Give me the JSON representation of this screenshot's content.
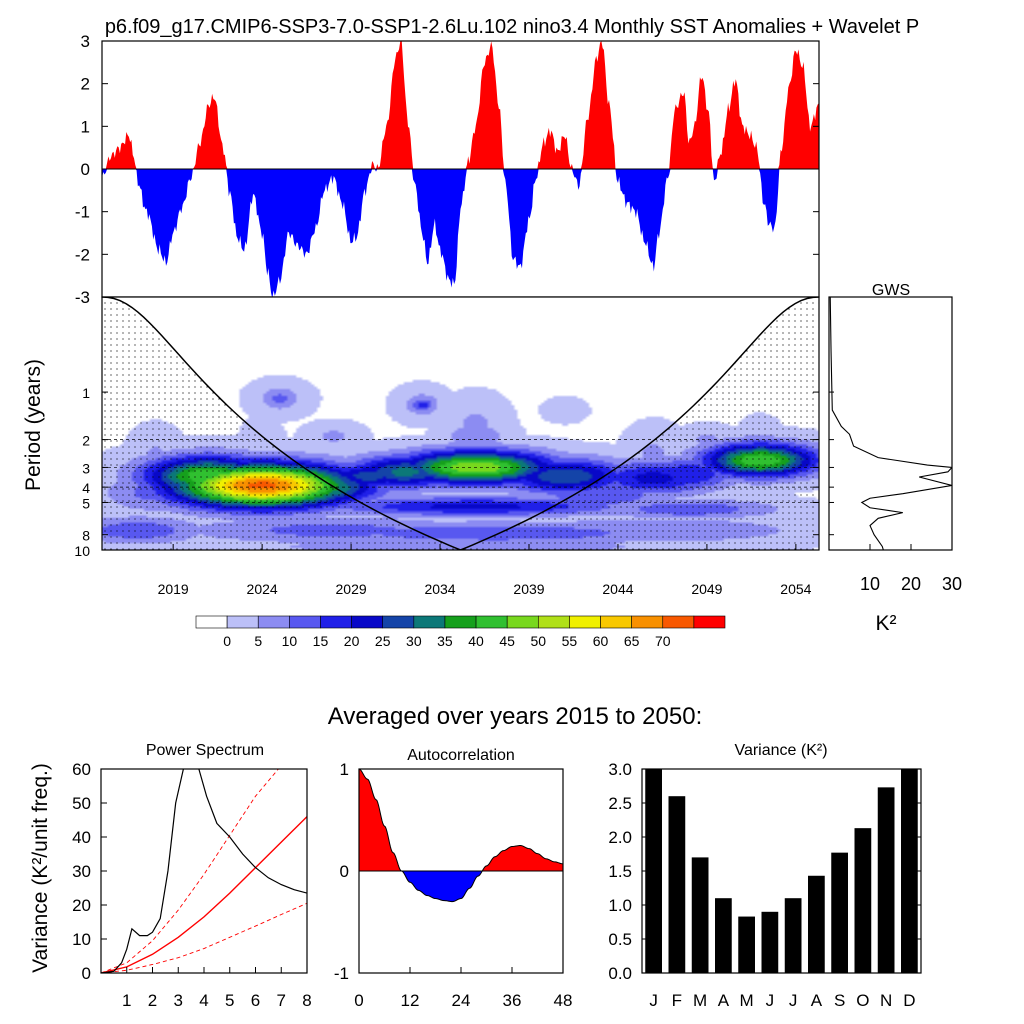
{
  "page": {
    "title": "p6.f09_g17.CMIP6-SSP3-7.0-SSP1-2.6Lu.102 nino3.4 Monthly SST Anomalies + Wavelet P",
    "averaged_title": "Averaged over years 2015 to 2050:"
  },
  "colors": {
    "positive": "#ff0000",
    "negative": "#0000ff",
    "colorbar": [
      "#ffffff",
      "#bcc0f8",
      "#8c8cf2",
      "#5858f0",
      "#2020e8",
      "#0808c8",
      "#1444a8",
      "#0c7878",
      "#16a01c",
      "#30c030",
      "#78d81e",
      "#b0e018",
      "#f0f000",
      "#f8c800",
      "#f89000",
      "#f85800",
      "#ff0000"
    ]
  },
  "chart_data": [
    {
      "type": "area",
      "id": "sst-anomaly",
      "ylim": [
        -3,
        3
      ],
      "xlim": [
        2015,
        2055.3
      ],
      "y_ticks": [
        "-3",
        "-2",
        "-1",
        "0",
        "1",
        "2",
        "3"
      ],
      "y_tick_values": [
        -3,
        -2,
        -1,
        0,
        1,
        2,
        3
      ],
      "keypoints": [
        [
          2015.0,
          -0.2
        ],
        [
          2015.5,
          0.3
        ],
        [
          2016.0,
          0.5
        ],
        [
          2016.5,
          0.8
        ],
        [
          2016.8,
          0.3
        ],
        [
          2017.0,
          -0.3
        ],
        [
          2017.5,
          -1.0
        ],
        [
          2018.2,
          -1.9
        ],
        [
          2018.6,
          -2.2
        ],
        [
          2019.0,
          -1.5
        ],
        [
          2019.5,
          -0.9
        ],
        [
          2020.0,
          -0.2
        ],
        [
          2020.5,
          0.6
        ],
        [
          2021.0,
          1.5
        ],
        [
          2021.3,
          1.7
        ],
        [
          2021.8,
          0.5
        ],
        [
          2022.2,
          -0.6
        ],
        [
          2022.6,
          -1.6
        ],
        [
          2023.0,
          -1.9
        ],
        [
          2023.5,
          -0.6
        ],
        [
          2024.0,
          -1.5
        ],
        [
          2024.3,
          -2.4
        ],
        [
          2024.6,
          -3.0
        ],
        [
          2025.0,
          -2.6
        ],
        [
          2025.5,
          -1.5
        ],
        [
          2026.0,
          -1.8
        ],
        [
          2026.5,
          -2.0
        ],
        [
          2027.0,
          -1.4
        ],
        [
          2027.5,
          -0.5
        ],
        [
          2028.0,
          -0.2
        ],
        [
          2028.5,
          -0.8
        ],
        [
          2029.0,
          -1.7
        ],
        [
          2029.3,
          -1.6
        ],
        [
          2029.8,
          -0.5
        ],
        [
          2030.2,
          0.1
        ],
        [
          2030.5,
          0.0
        ],
        [
          2031.0,
          1.0
        ],
        [
          2031.5,
          2.6
        ],
        [
          2031.8,
          3.0
        ],
        [
          2032.2,
          1.1
        ],
        [
          2032.6,
          -0.4
        ],
        [
          2033.0,
          -1.5
        ],
        [
          2033.3,
          -2.2
        ],
        [
          2033.7,
          -1.3
        ],
        [
          2034.0,
          -1.9
        ],
        [
          2034.5,
          -2.6
        ],
        [
          2034.8,
          -2.7
        ],
        [
          2035.2,
          -0.8
        ],
        [
          2035.6,
          0.2
        ],
        [
          2036.0,
          1.0
        ],
        [
          2036.5,
          2.5
        ],
        [
          2036.9,
          2.9
        ],
        [
          2037.3,
          1.5
        ],
        [
          2037.7,
          -0.4
        ],
        [
          2038.1,
          -2.1
        ],
        [
          2038.5,
          -2.3
        ],
        [
          2039.0,
          -1.2
        ],
        [
          2039.4,
          -0.2
        ],
        [
          2039.8,
          0.6
        ],
        [
          2040.2,
          0.9
        ],
        [
          2040.6,
          0.4
        ],
        [
          2041.0,
          0.8
        ],
        [
          2041.4,
          0.0
        ],
        [
          2041.8,
          -0.4
        ],
        [
          2042.3,
          1.2
        ],
        [
          2042.8,
          2.6
        ],
        [
          2043.1,
          3.0
        ],
        [
          2043.5,
          1.5
        ],
        [
          2044.0,
          -0.3
        ],
        [
          2044.5,
          -0.8
        ],
        [
          2045.0,
          -1.0
        ],
        [
          2045.5,
          -1.7
        ],
        [
          2046.0,
          -2.3
        ],
        [
          2046.3,
          -1.5
        ],
        [
          2046.8,
          -0.2
        ],
        [
          2047.2,
          1.4
        ],
        [
          2047.7,
          1.8
        ],
        [
          2048.0,
          0.6
        ],
        [
          2048.3,
          1.0
        ],
        [
          2048.7,
          2.2
        ],
        [
          2049.1,
          1.3
        ],
        [
          2049.4,
          -0.3
        ],
        [
          2049.8,
          0.4
        ],
        [
          2050.2,
          1.4
        ],
        [
          2050.6,
          2.1
        ],
        [
          2051.0,
          1.0
        ],
        [
          2051.4,
          0.8
        ],
        [
          2051.8,
          0.5
        ],
        [
          2052.2,
          -0.8
        ],
        [
          2052.5,
          -1.3
        ],
        [
          2052.8,
          -1.4
        ],
        [
          2053.2,
          0.5
        ],
        [
          2053.6,
          1.9
        ],
        [
          2054.0,
          2.8
        ],
        [
          2054.4,
          2.4
        ],
        [
          2054.8,
          1.0
        ],
        [
          2055.3,
          1.5
        ]
      ]
    },
    {
      "type": "heatmap",
      "id": "wavelet-power",
      "ylabel": "Period (years)",
      "x_ticks": [
        "2019",
        "2024",
        "2029",
        "2034",
        "2039",
        "2044",
        "2049",
        "2054"
      ],
      "x_tick_values": [
        2019,
        2024,
        2029,
        2034,
        2039,
        2044,
        2049,
        2054
      ],
      "y_ticks": [
        "1",
        "2",
        "3",
        "4",
        "5",
        "8",
        "10"
      ],
      "y_tick_values": [
        1,
        2,
        3,
        4,
        5,
        8,
        10
      ],
      "ylim": [
        0.25,
        10
      ],
      "y_scale": "log",
      "colorbar_labels": [
        "0",
        "5",
        "10",
        "15",
        "20",
        "25",
        "30",
        "35",
        "40",
        "45",
        "50",
        "55",
        "60",
        "65",
        "70"
      ],
      "dashed_periods": [
        2,
        3,
        4,
        5
      ],
      "blobs": [
        [
          2018,
          2.6,
          6,
          0.9,
          0.25
        ],
        [
          2024,
          2.2,
          3,
          0.8,
          0.25
        ],
        [
          2036,
          1.6,
          6,
          1.1,
          0.25
        ],
        [
          2046,
          2.5,
          6,
          1.0,
          0.25
        ],
        [
          2052,
          2.3,
          5,
          0.8,
          0.25
        ],
        [
          2024,
          3.9,
          72,
          3.5,
          0.22
        ],
        [
          2021,
          3.4,
          45,
          2.5,
          0.2
        ],
        [
          2027,
          4.0,
          40,
          2.5,
          0.18
        ],
        [
          2030,
          3.4,
          28,
          1.8,
          0.14
        ],
        [
          2036,
          3.0,
          50,
          3.0,
          0.17
        ],
        [
          2032,
          3.2,
          32,
          2.2,
          0.17
        ],
        [
          2041,
          3.4,
          30,
          2.5,
          0.18
        ],
        [
          2046,
          3.5,
          22,
          2.5,
          0.18
        ],
        [
          2052,
          2.7,
          45,
          2.2,
          0.17
        ],
        [
          2048,
          3.3,
          20,
          1.8,
          0.17
        ],
        [
          2018,
          4.3,
          12,
          2.0,
          0.2
        ],
        [
          2043,
          4.5,
          14,
          3.0,
          0.15
        ],
        [
          2036,
          5.3,
          22,
          6.0,
          0.1
        ],
        [
          2023,
          5.3,
          16,
          3.0,
          0.1
        ],
        [
          2048,
          5.5,
          14,
          3.5,
          0.1
        ],
        [
          2028,
          7.5,
          12,
          6.0,
          0.14
        ],
        [
          2046,
          7.5,
          10,
          6.0,
          0.14
        ],
        [
          2037,
          7.8,
          14,
          8.0,
          0.12
        ],
        [
          2017,
          7.5,
          14,
          2.5,
          0.14
        ],
        [
          2035,
          9.5,
          10,
          8.0,
          0.08
        ],
        [
          2025,
          1.1,
          14,
          0.5,
          0.07
        ],
        [
          2025,
          1.1,
          8,
          1.0,
          0.15
        ],
        [
          2033,
          1.2,
          18,
          0.45,
          0.07
        ],
        [
          2033,
          1.2,
          8,
          0.9,
          0.15
        ],
        [
          2041,
          1.3,
          5,
          0.7,
          0.1
        ],
        [
          2036,
          1.9,
          10,
          1.2,
          0.12
        ],
        [
          2028,
          1.9,
          6,
          1.0,
          0.12
        ],
        [
          2049,
          2.0,
          6,
          1.0,
          0.12
        ]
      ]
    },
    {
      "type": "line",
      "id": "gws",
      "title": "GWS",
      "xlabel": "K²",
      "x_ticks": [
        "10",
        "20",
        "30"
      ],
      "x_tick_values": [
        10,
        20,
        30
      ],
      "xlim": [
        0,
        30
      ],
      "points": [
        [
          0.3,
          0
        ],
        [
          0.5,
          0.55
        ],
        [
          0.8,
          1.3
        ],
        [
          3,
          1.65
        ],
        [
          5,
          1.85
        ],
        [
          6,
          2.2
        ],
        [
          12,
          2.6
        ],
        [
          24,
          2.9
        ],
        [
          30,
          3.0
        ],
        [
          29,
          3.2
        ],
        [
          22,
          3.45
        ],
        [
          30,
          3.9
        ],
        [
          18,
          4.4
        ],
        [
          10,
          4.7
        ],
        [
          8,
          5.0
        ],
        [
          10,
          5.4
        ],
        [
          18,
          5.8
        ],
        [
          12,
          6.3
        ],
        [
          10,
          7.0
        ],
        [
          11,
          8.0
        ],
        [
          13,
          9.5
        ],
        [
          13.5,
          10.5
        ]
      ]
    },
    {
      "type": "line",
      "id": "power-spectrum",
      "title": "Power Spectrum",
      "ylabel": "Variance (K²/unit freq.)",
      "xlim": [
        0,
        8
      ],
      "ylim": [
        0,
        60
      ],
      "x_ticks": [
        "1",
        "2",
        "3",
        "4",
        "5",
        "6",
        "7",
        "8"
      ],
      "x_tick_values": [
        1,
        2,
        3,
        4,
        5,
        6,
        7,
        8
      ],
      "y_ticks": [
        "0",
        "10",
        "20",
        "30",
        "40",
        "50",
        "60"
      ],
      "y_tick_values": [
        0,
        10,
        20,
        30,
        40,
        50,
        60
      ],
      "spectrum": [
        [
          0,
          0
        ],
        [
          0.5,
          0.5
        ],
        [
          0.8,
          3
        ],
        [
          1.0,
          7
        ],
        [
          1.2,
          13
        ],
        [
          1.5,
          11
        ],
        [
          1.8,
          11
        ],
        [
          2.0,
          12
        ],
        [
          2.3,
          16
        ],
        [
          2.6,
          30
        ],
        [
          2.9,
          50
        ],
        [
          3.2,
          60
        ],
        [
          3.5,
          62
        ],
        [
          3.8,
          60
        ],
        [
          4.1,
          52
        ],
        [
          4.5,
          44
        ],
        [
          5.0,
          40
        ],
        [
          5.5,
          35
        ],
        [
          6.0,
          31
        ],
        [
          6.5,
          28
        ],
        [
          7.0,
          26
        ],
        [
          7.5,
          24.5
        ],
        [
          8.0,
          23.5
        ]
      ],
      "red_noise": [
        [
          0,
          0
        ],
        [
          1,
          1.8
        ],
        [
          2,
          5.5
        ],
        [
          3,
          10.5
        ],
        [
          4,
          16.5
        ],
        [
          5,
          23.5
        ],
        [
          6,
          31
        ],
        [
          7,
          38.5
        ],
        [
          8,
          46
        ]
      ],
      "upper_bound": [
        [
          0,
          0
        ],
        [
          1,
          3
        ],
        [
          2,
          9.5
        ],
        [
          3,
          18.5
        ],
        [
          4,
          29
        ],
        [
          5,
          40.5
        ],
        [
          6,
          52
        ],
        [
          7,
          61
        ]
      ],
      "lower_bound": [
        [
          0,
          0
        ],
        [
          1,
          0.8
        ],
        [
          2,
          2.5
        ],
        [
          3,
          4.5
        ],
        [
          4,
          7.2
        ],
        [
          5,
          10.5
        ],
        [
          6,
          13.8
        ],
        [
          7,
          17.2
        ],
        [
          8,
          20.5
        ]
      ]
    },
    {
      "type": "area",
      "id": "autocorrelation",
      "title": "Autocorrelation",
      "xlim": [
        0,
        48
      ],
      "ylim": [
        -1,
        1
      ],
      "x_ticks": [
        "0",
        "12",
        "24",
        "36",
        "48"
      ],
      "x_tick_values": [
        0,
        12,
        24,
        36,
        48
      ],
      "y_ticks": [
        "-1",
        "0",
        "1"
      ],
      "y_tick_values": [
        -1,
        0,
        1
      ],
      "values": [
        [
          0,
          1.0
        ],
        [
          2,
          0.9
        ],
        [
          4,
          0.7
        ],
        [
          6,
          0.44
        ],
        [
          8,
          0.18
        ],
        [
          10,
          0.0
        ],
        [
          12,
          -0.11
        ],
        [
          14,
          -0.19
        ],
        [
          16,
          -0.24
        ],
        [
          18,
          -0.27
        ],
        [
          20,
          -0.29
        ],
        [
          22,
          -0.3
        ],
        [
          24,
          -0.27
        ],
        [
          26,
          -0.17
        ],
        [
          28,
          -0.05
        ],
        [
          30,
          0.05
        ],
        [
          32,
          0.14
        ],
        [
          34,
          0.2
        ],
        [
          36,
          0.24
        ],
        [
          38,
          0.25
        ],
        [
          40,
          0.22
        ],
        [
          42,
          0.17
        ],
        [
          44,
          0.12
        ],
        [
          46,
          0.09
        ],
        [
          48,
          0.07
        ]
      ]
    },
    {
      "type": "bar",
      "id": "variance",
      "title": "Variance (K²)",
      "categories": [
        "J",
        "F",
        "M",
        "A",
        "M",
        "J",
        "J",
        "A",
        "S",
        "O",
        "N",
        "D"
      ],
      "values": [
        3.0,
        2.6,
        1.7,
        1.1,
        0.83,
        0.9,
        1.1,
        1.43,
        1.77,
        2.13,
        2.73,
        3.0
      ],
      "ylim": [
        0,
        3
      ],
      "y_ticks": [
        "0.0",
        "0.5",
        "1.0",
        "1.5",
        "2.0",
        "2.5",
        "3.0"
      ],
      "y_tick_values": [
        0,
        0.5,
        1,
        1.5,
        2,
        2.5,
        3
      ]
    }
  ]
}
